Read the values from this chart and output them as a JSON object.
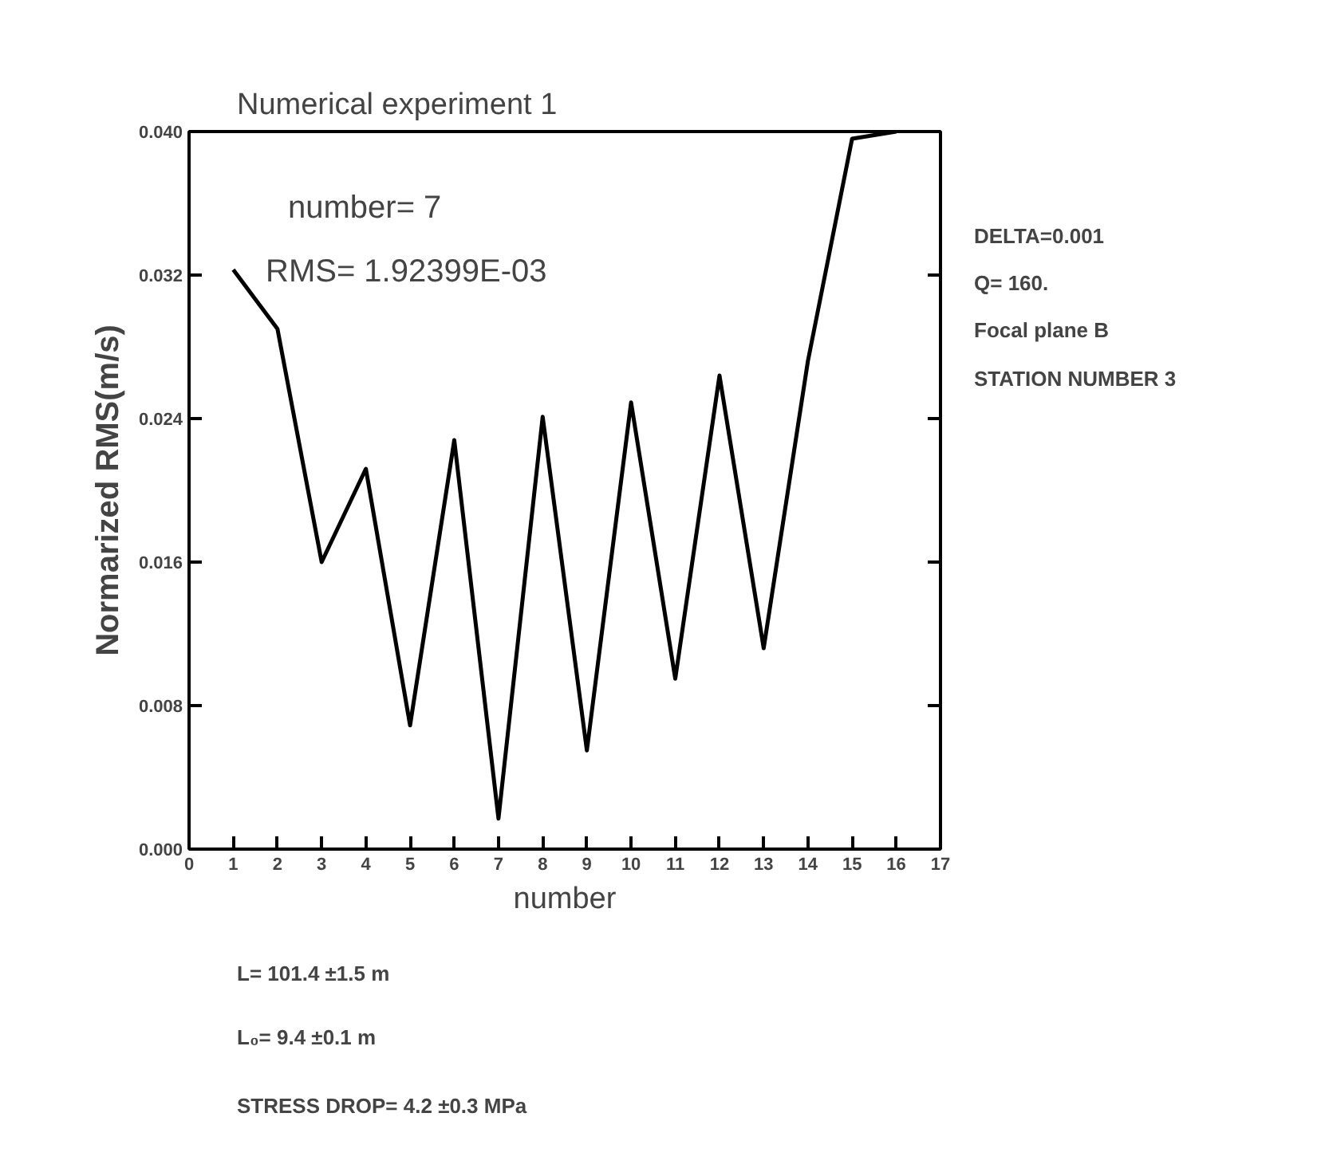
{
  "chart_data": {
    "type": "line",
    "title": "Numerical experiment 1",
    "xlabel": "number",
    "ylabel": "Normarized RMS(m/s)",
    "x": [
      1,
      2,
      3,
      4,
      5,
      6,
      7,
      8,
      9,
      10,
      11,
      12,
      13,
      14,
      15,
      16
    ],
    "series": [
      {
        "color": "#000000",
        "values": [
          0.0323,
          0.029,
          0.016,
          0.0212,
          0.0069,
          0.0228,
          0.0017,
          0.0241,
          0.0055,
          0.0249,
          0.0095,
          0.0264,
          0.0112,
          0.0272,
          0.0396,
          0.04
        ]
      }
    ],
    "xlim": [
      0,
      17
    ],
    "xticks": [
      0,
      1,
      2,
      3,
      4,
      5,
      6,
      7,
      8,
      9,
      10,
      11,
      12,
      13,
      14,
      15,
      16,
      17
    ],
    "ylim": [
      0,
      0.04
    ],
    "yticks": [
      {
        "value": 0,
        "label": "0.000"
      },
      {
        "value": 0.008,
        "label": "0.008"
      },
      {
        "value": 0.016,
        "label": "0.016"
      },
      {
        "value": 0.024,
        "label": "0.024"
      },
      {
        "value": 0.032,
        "label": "0.032"
      },
      {
        "value": 0.04,
        "label": "0.040"
      }
    ],
    "grid": false,
    "marker": "none",
    "line_style": "solid",
    "annotations": [
      "number=   7",
      "RMS=     1.92399E-03",
      "DELTA=0.001",
      "Q=    160.",
      "Focal plane B",
      "STATION NUMBER   3",
      "L= 101.4 ±1.5 m",
      "L₀=  9.4 ±0.1 m",
      "STRESS DROP=   4.2 ±0.3 MPa"
    ]
  }
}
